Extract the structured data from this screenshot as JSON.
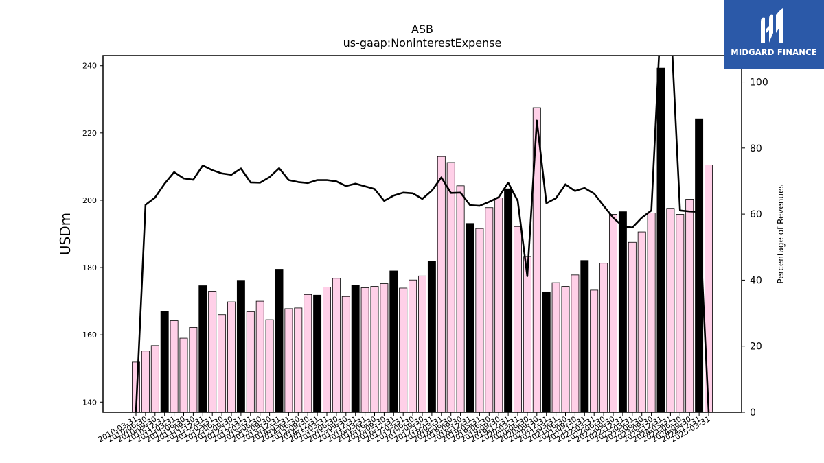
{
  "logo": {
    "text": "MIDGARD FINANCE"
  },
  "chart_data": {
    "type": "bar",
    "title": "ASB",
    "subtitle": "us-gaap:NoninterestExpense",
    "ylabel": "USDm",
    "y2label": "Percentage of Revenues",
    "ylim": [
      137,
      243
    ],
    "y2lim": [
      0,
      108
    ],
    "yticks": [
      140,
      160,
      180,
      200,
      220,
      240
    ],
    "y2ticks": [
      0,
      20,
      40,
      60,
      80,
      100
    ],
    "colors": {
      "quarter": "#ffd0e8",
      "fiscal_year_end": "#000000",
      "line": "#000000"
    },
    "categories": [
      "2010-03-31",
      "2010-06-30",
      "2010-09-30",
      "2010-12-31",
      "2011-03-31",
      "2011-06-30",
      "2011-09-30",
      "2011-12-31",
      "2012-03-31",
      "2012-06-30",
      "2012-09-30",
      "2012-12-31",
      "2013-03-31",
      "2013-06-30",
      "2013-09-30",
      "2013-12-31",
      "2014-03-31",
      "2014-06-30",
      "2014-09-30",
      "2014-12-31",
      "2015-03-31",
      "2015-06-30",
      "2015-09-30",
      "2015-12-31",
      "2016-03-31",
      "2016-06-30",
      "2016-09-30",
      "2016-12-31",
      "2017-03-31",
      "2017-06-30",
      "2017-09-30",
      "2017-12-31",
      "2018-03-31",
      "2018-06-30",
      "2018-09-30",
      "2018-12-31",
      "2019-03-31",
      "2019-06-30",
      "2019-09-30",
      "2019-12-31",
      "2020-03-31",
      "2020-06-30",
      "2020-09-30",
      "2020-12-31",
      "2021-03-31",
      "2021-06-30",
      "2021-09-30",
      "2021-12-31",
      "2022-03-31",
      "2022-06-30",
      "2022-09-30",
      "2022-12-31",
      "2023-03-31",
      "2023-06-30",
      "2023-09-30",
      "2023-12-31",
      "2024-03-31",
      "2024-06-30",
      "2024-09-30",
      "2024-12-31",
      "2025-03-31"
    ],
    "values": [
      151.9,
      155.2,
      156.8,
      167.0,
      164.2,
      159.0,
      162.2,
      174.6,
      173.0,
      166.0,
      169.8,
      176.2,
      166.9,
      170.0,
      164.5,
      179.5,
      167.8,
      168.0,
      172.0,
      171.8,
      174.2,
      176.8,
      171.4,
      174.8,
      174.0,
      174.4,
      175.2,
      179.0,
      173.9,
      176.3,
      177.5,
      181.8,
      213.0,
      211.2,
      204.3,
      193.1,
      191.6,
      197.8,
      200.7,
      203.4,
      192.2,
      183.3,
      227.5,
      172.8,
      175.5,
      174.4,
      177.8,
      182.1,
      173.3,
      181.3,
      195.8,
      196.6,
      187.5,
      190.6,
      196.2,
      239.3,
      197.6,
      195.8,
      200.3,
      224.2,
      210.5
    ],
    "fiscal_year_end": [
      false,
      false,
      false,
      true,
      false,
      false,
      false,
      true,
      false,
      false,
      false,
      true,
      false,
      false,
      false,
      true,
      false,
      false,
      false,
      true,
      false,
      false,
      false,
      true,
      false,
      false,
      false,
      true,
      false,
      false,
      false,
      true,
      false,
      false,
      false,
      true,
      false,
      false,
      false,
      true,
      false,
      false,
      false,
      true,
      false,
      false,
      false,
      true,
      false,
      false,
      false,
      true,
      false,
      false,
      false,
      true,
      false,
      false,
      false,
      true,
      false
    ],
    "pct_of_revenues": [
      0,
      62.8,
      65,
      69.2,
      72.7,
      70.8,
      70.4,
      74.7,
      73.3,
      72.3,
      71.9,
      73.8,
      69.6,
      69.5,
      71.2,
      73.9,
      70.3,
      69.7,
      69.4,
      70.3,
      70.3,
      69.9,
      68.5,
      69.2,
      68.4,
      67.6,
      64.0,
      65.6,
      66.5,
      66.3,
      64.6,
      67.1,
      71.1,
      66.4,
      66.5,
      62.7,
      62.5,
      63.7,
      65.1,
      69.5,
      64.0,
      41.2,
      88.3,
      63.3,
      64.8,
      69.0,
      67.0,
      67.9,
      66.2,
      62.5,
      58.9,
      56.3,
      55.9,
      58.9,
      61.1,
      120,
      120,
      61.1,
      60.8,
      60.7,
      0
    ]
  }
}
